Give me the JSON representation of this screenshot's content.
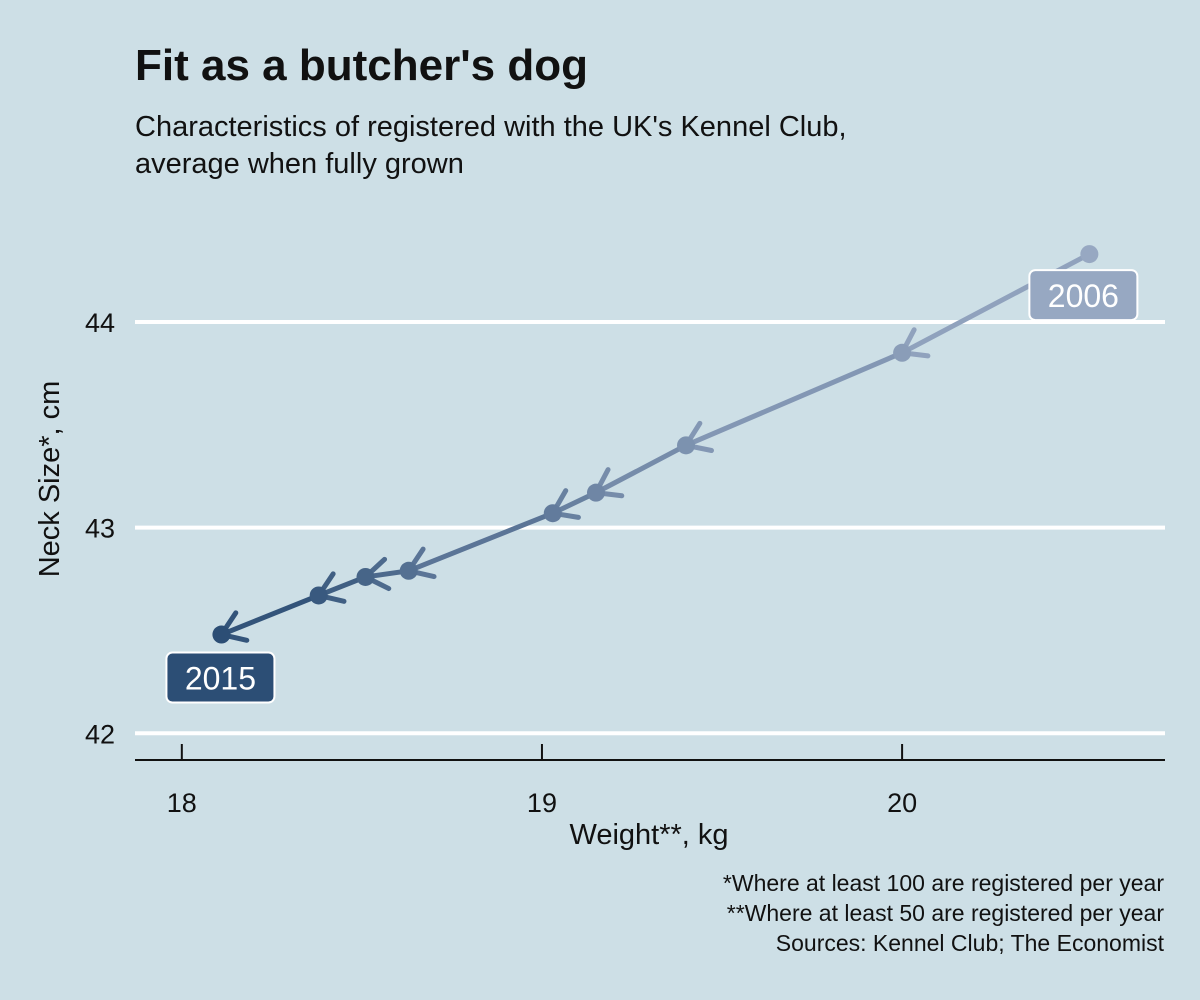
{
  "chart_data": {
    "type": "scatter",
    "title": "Fit as a butcher's dog",
    "subtitle_lines": [
      "Characteristics of registered with the UK's Kennel Club,",
      "average when fully grown"
    ],
    "xlabel": "Weight**, kg",
    "ylabel": "Neck Size*, cm",
    "xlim": [
      17.87,
      20.73
    ],
    "ylim": [
      41.87,
      44.52
    ],
    "x_ticks": [
      18,
      19,
      20
    ],
    "x_tick_labels": [
      "18",
      "19",
      "20"
    ],
    "y_ticks": [
      42,
      43,
      44
    ],
    "y_tick_labels": [
      "42",
      "43",
      "44"
    ],
    "grid": "horizontal",
    "series": [
      {
        "points": [
          {
            "x": 20.52,
            "y": 44.33
          },
          {
            "x": 20.0,
            "y": 43.85
          },
          {
            "x": 19.4,
            "y": 43.4
          },
          {
            "x": 19.15,
            "y": 43.17
          },
          {
            "x": 19.03,
            "y": 43.07
          },
          {
            "x": 18.63,
            "y": 42.79
          },
          {
            "x": 18.51,
            "y": 42.76
          },
          {
            "x": 18.38,
            "y": 42.67
          },
          {
            "x": 18.11,
            "y": 42.48
          }
        ],
        "colors": [
          "#97a8c2",
          "#2c4e75"
        ]
      }
    ],
    "annotations": [
      {
        "text": "2006",
        "x": 20.52,
        "y": 44.33,
        "color": "#97a8c2"
      },
      {
        "text": "2015",
        "x": 18.11,
        "y": 42.48,
        "color": "#2c4e75"
      }
    ],
    "footnotes": [
      "*Where at least 100 are registered per year",
      "**Where at least 50 are registered per year",
      "Sources: Kennel Club; The Economist"
    ]
  }
}
